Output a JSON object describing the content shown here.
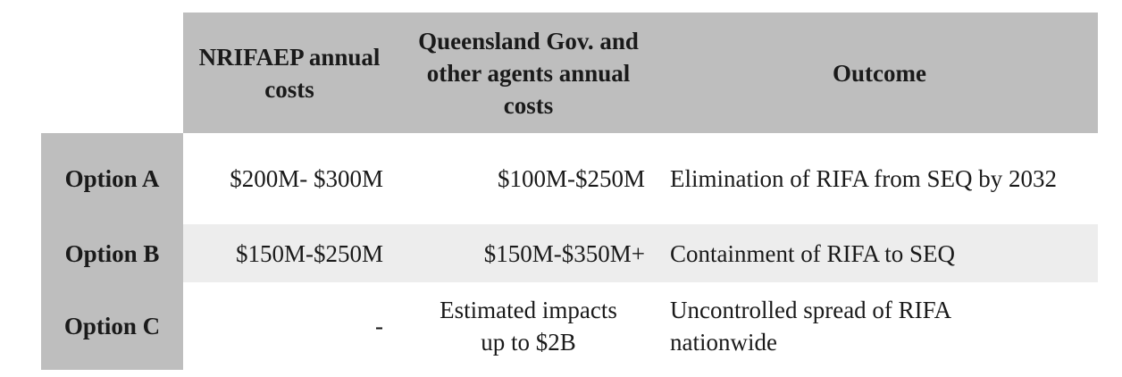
{
  "table": {
    "headers": [
      "",
      "NRIFAEP annual costs",
      "Queensland Gov. and other agents annual costs",
      "Outcome"
    ],
    "rows": [
      {
        "label": "Option A",
        "nrifaep": "$200M- $300M",
        "qld": "$100M-$250M",
        "outcome": "Elimination of RIFA from SEQ by 2032"
      },
      {
        "label": "Option B",
        "nrifaep": "$150M-$250M",
        "qld": "$150M-$350M+",
        "outcome": "Containment of RIFA to SEQ"
      },
      {
        "label": "Option C",
        "nrifaep": "-",
        "qld": "Estimated impacts up to $2B",
        "outcome": "Uncontrolled spread of RIFA nationwide"
      }
    ]
  }
}
